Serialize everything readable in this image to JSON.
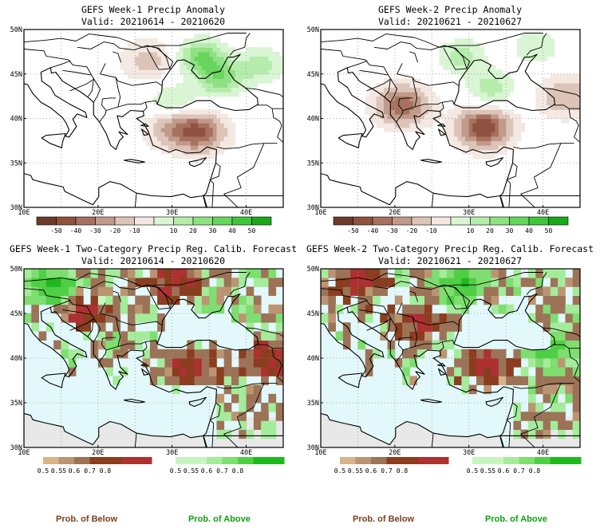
{
  "figure": {
    "panels": [
      {
        "title": "GEFS Week-1 Precip Anomaly",
        "valid": "Valid: 20210614 - 20210620"
      },
      {
        "title": "GEFS Week-2 Precip Anomaly",
        "valid": "Valid: 20210621 - 20210627"
      },
      {
        "title": "GEFS Week-1 Two-Category Precip Reg. Calib. Forecast",
        "valid": "Valid: 20210614 - 20210620"
      },
      {
        "title": "GEFS Week-2 Two-Category Precip Reg. Calib. Forecast",
        "valid": "Valid: 20210621 - 20210627"
      }
    ],
    "lat_ticks": [
      "30N",
      "35N",
      "40N",
      "45N",
      "50N"
    ],
    "lon_ticks": [
      "10E",
      "20E",
      "30E",
      "40E"
    ],
    "anom_colorbar": {
      "labels": [
        "-50",
        "-40",
        "-30",
        "-20",
        "-10",
        "10",
        "20",
        "30",
        "40",
        "50"
      ],
      "colors": [
        "#6b3a2a",
        "#8e5240",
        "#a8705e",
        "#c19a89",
        "#dcc4b8",
        "#f3e8e2",
        "#ffffff",
        "#d9f5d3",
        "#b6ecac",
        "#8fe283",
        "#66d65c",
        "#3ec63a",
        "#1aa81a"
      ]
    },
    "below_colorbar": {
      "labels": [
        "0.5",
        "0.55",
        "0.6",
        "0.7",
        "0.8"
      ],
      "colors": [
        "#d7b48a",
        "#bb9572",
        "#9c7357",
        "#8a3d1f",
        "#ad3131"
      ]
    },
    "above_colorbar": {
      "labels": [
        "0.5",
        "0.55",
        "0.6",
        "0.7",
        "0.8"
      ],
      "colors": [
        "#c6f5c0",
        "#a4ec9b",
        "#7ede6f",
        "#4fcf45",
        "#1fb81f"
      ]
    },
    "legend": {
      "below_label": "Prob. of Below",
      "above_label": "Prob. of Above",
      "below_color": "#7b3f1c",
      "above_color": "#11a011"
    },
    "sea_color": "#e2f8fa",
    "missing_color": "#e8e8e8"
  },
  "chart_data": [
    {
      "type": "heatmap",
      "title": "GEFS Week-1 Precip Anomaly",
      "subtitle": "Valid: 20210614 - 20210620",
      "x_range": [
        10,
        45
      ],
      "y_range": [
        30,
        50
      ],
      "contour_levels": [
        -50,
        -40,
        -30,
        -20,
        -10,
        10,
        20,
        30,
        40,
        50
      ],
      "features": [
        {
          "lon": 34,
          "lat": 47,
          "value": 40
        },
        {
          "lon": 36.5,
          "lat": 44.5,
          "value": 35
        },
        {
          "lon": 42,
          "lat": 46,
          "value": 25
        },
        {
          "lon": 30,
          "lat": 42,
          "value": 20
        },
        {
          "lon": 33.5,
          "lat": 38.5,
          "value": -40
        },
        {
          "lon": 30,
          "lat": 39,
          "value": -20
        },
        {
          "lon": 27,
          "lat": 46.5,
          "value": -15
        }
      ]
    },
    {
      "type": "heatmap",
      "title": "GEFS Week-2 Precip Anomaly",
      "subtitle": "Valid: 20210621 - 20210627",
      "x_range": [
        10,
        45
      ],
      "y_range": [
        30,
        50
      ],
      "contour_levels": [
        -50,
        -40,
        -30,
        -20,
        -10,
        10,
        20,
        30,
        40,
        50
      ],
      "features": [
        {
          "lon": 29,
          "lat": 47,
          "value": 25
        },
        {
          "lon": 33,
          "lat": 43.5,
          "value": 25
        },
        {
          "lon": 39,
          "lat": 48,
          "value": 20
        },
        {
          "lon": 32,
          "lat": 39,
          "value": -50
        },
        {
          "lon": 21,
          "lat": 41.5,
          "value": -40
        },
        {
          "lon": 43,
          "lat": 42.5,
          "value": -20
        }
      ]
    },
    {
      "type": "heatmap",
      "title": "GEFS Week-1 Two-Category Precip Reg. Calib. Forecast",
      "subtitle": "Valid: 20210614 - 20210620",
      "x_range": [
        10,
        45
      ],
      "y_range": [
        30,
        50
      ],
      "categories": [
        "Prob. of Below",
        "Prob. of Above"
      ],
      "levels": [
        0.5,
        0.55,
        0.6,
        0.7,
        0.8
      ],
      "regions": [
        {
          "lon": 30,
          "lat": 48.5,
          "category": "below",
          "prob": 0.8
        },
        {
          "lon": 18,
          "lat": 45,
          "category": "below",
          "prob": 0.6
        },
        {
          "lon": 43,
          "lat": 40,
          "category": "below",
          "prob": 0.8
        },
        {
          "lon": 33,
          "lat": 39,
          "category": "below",
          "prob": 0.7
        },
        {
          "lon": 14,
          "lat": 48,
          "category": "above",
          "prob": 0.7
        },
        {
          "lon": 36,
          "lat": 44,
          "category": "above",
          "prob": 0.6
        }
      ]
    },
    {
      "type": "heatmap",
      "title": "GEFS Week-2 Two-Category Precip Reg. Calib. Forecast",
      "subtitle": "Valid: 20210621 - 20210627",
      "x_range": [
        10,
        45
      ],
      "y_range": [
        30,
        50
      ],
      "categories": [
        "Prob. of Below",
        "Prob. of Above"
      ],
      "levels": [
        0.5,
        0.55,
        0.6,
        0.7,
        0.8
      ],
      "regions": [
        {
          "lon": 15,
          "lat": 48.5,
          "category": "below",
          "prob": 0.8
        },
        {
          "lon": 33,
          "lat": 39,
          "category": "below",
          "prob": 0.8
        },
        {
          "lon": 23,
          "lat": 44,
          "category": "below",
          "prob": 0.6
        },
        {
          "lon": 29,
          "lat": 48,
          "category": "above",
          "prob": 0.6
        },
        {
          "lon": 41,
          "lat": 41,
          "category": "above",
          "prob": 0.55
        }
      ]
    }
  ]
}
